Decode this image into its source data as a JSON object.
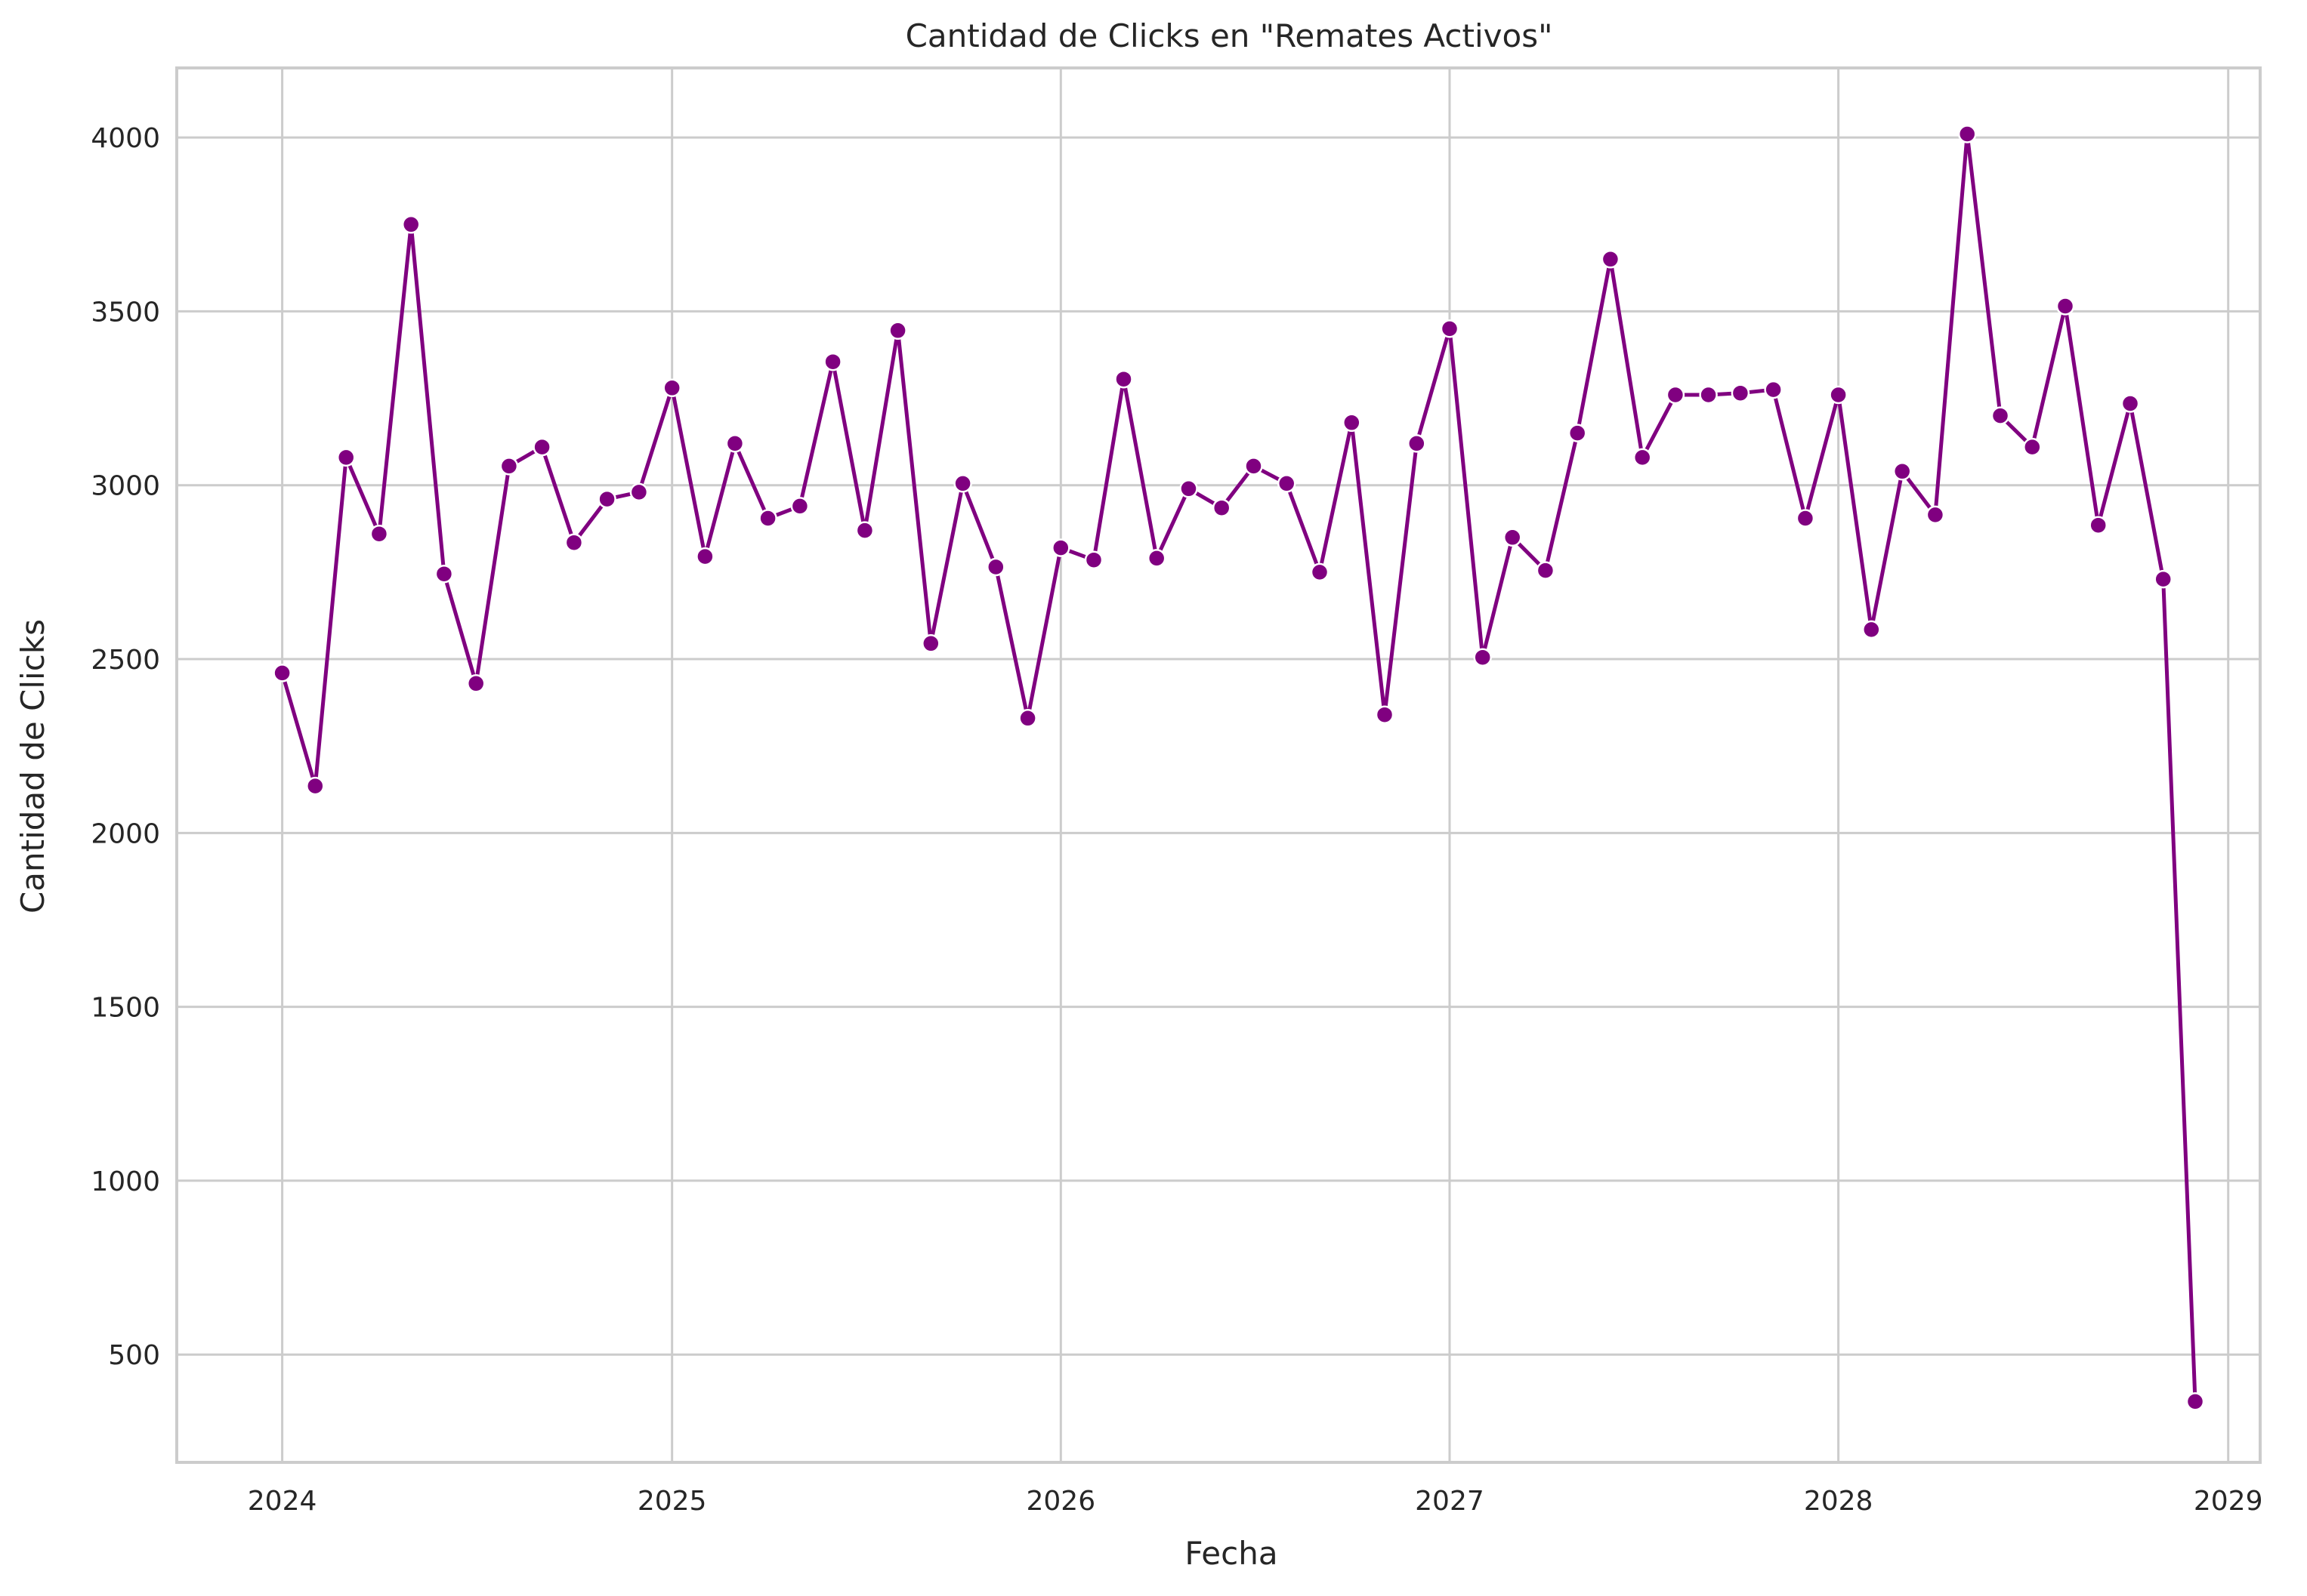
{
  "chart_data": {
    "type": "line",
    "title": "Cantidad de Clicks en \"Remates Activos\"",
    "xlabel": "Fecha",
    "ylabel": "Cantidad de Clicks",
    "x_ticks": [
      "2024",
      "2025",
      "2026",
      "2027",
      "2028",
      "2029"
    ],
    "y_ticks": [
      500,
      1000,
      1500,
      2000,
      2500,
      3000,
      3500,
      4000
    ],
    "xlim": [
      "2023-09-24",
      "2029-01-31"
    ],
    "ylim": [
      190,
      4200
    ],
    "grid": true,
    "line_color": "#800080",
    "marker": "circle",
    "series": [
      {
        "x": [
          "2024-01",
          "2024-02",
          "2024-03",
          "2024-04",
          "2024-05",
          "2024-06",
          "2024-07",
          "2024-08",
          "2024-09",
          "2024-10",
          "2024-11",
          "2024-12",
          "2025-01",
          "2025-02",
          "2025-03",
          "2025-04",
          "2025-05",
          "2025-06",
          "2025-07",
          "2025-08",
          "2025-09",
          "2025-10",
          "2025-11",
          "2025-12",
          "2026-01",
          "2026-02",
          "2026-03",
          "2026-04",
          "2026-05",
          "2026-06",
          "2026-07",
          "2026-08",
          "2026-09",
          "2026-10",
          "2026-11",
          "2026-12",
          "2027-01",
          "2027-02",
          "2027-03",
          "2027-04",
          "2027-05",
          "2027-06",
          "2027-07",
          "2027-08",
          "2027-09",
          "2027-10",
          "2027-11",
          "2027-12",
          "2028-01",
          "2028-02",
          "2028-03",
          "2028-04",
          "2028-05",
          "2028-06",
          "2028-07",
          "2028-08",
          "2028-09",
          "2028-10",
          "2028-11",
          "2028-12"
        ],
        "values": [
          2460,
          2135,
          3080,
          2860,
          3750,
          2745,
          2430,
          3055,
          3110,
          2835,
          2960,
          2980,
          3280,
          2795,
          3120,
          2905,
          2940,
          3355,
          2870,
          3445,
          2545,
          3005,
          2765,
          2330,
          2820,
          2785,
          3305,
          2790,
          2990,
          2935,
          3055,
          3005,
          2750,
          3180,
          2340,
          3120,
          3450,
          2505,
          2850,
          2755,
          3150,
          3650,
          3080,
          3260,
          3260,
          3265,
          3275,
          2905,
          3260,
          2585,
          3040,
          2915,
          4010,
          3200,
          3110,
          3515,
          2885,
          3235,
          2730,
          365
        ]
      }
    ]
  }
}
